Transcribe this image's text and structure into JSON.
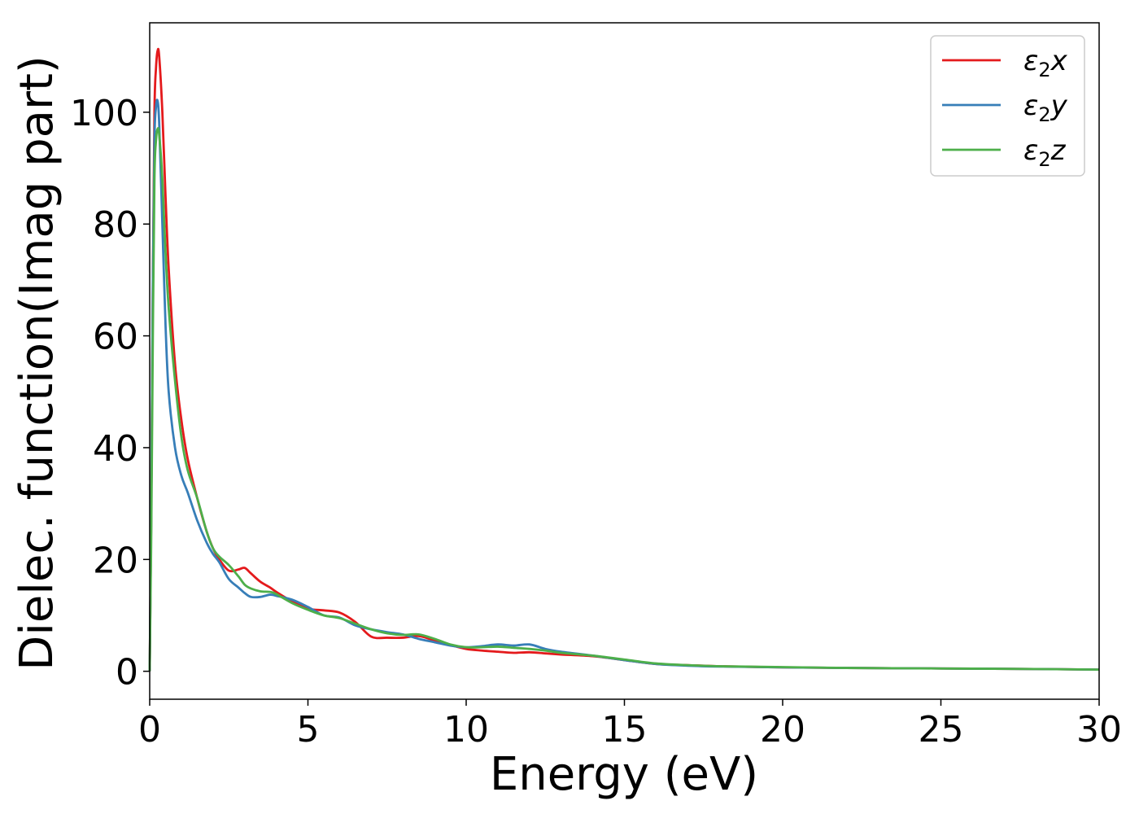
{
  "chart_data": {
    "type": "line",
    "title": "",
    "xlabel": "Energy (eV)",
    "ylabel": "Dielec. function(Imag part)",
    "xlim": [
      0,
      30
    ],
    "ylim": [
      -5,
      116
    ],
    "xticks": [
      0,
      5,
      10,
      15,
      20,
      25,
      30
    ],
    "yticks": [
      0,
      20,
      40,
      60,
      80,
      100
    ],
    "grid": false,
    "legend": "top-right",
    "series": [
      {
        "name": "ε2x",
        "legend_base": "ε",
        "legend_sub": "2",
        "legend_suffix": "x",
        "color": "#e41a1c",
        "x": [
          0,
          0.05,
          0.1,
          0.15,
          0.2,
          0.25,
          0.3,
          0.4,
          0.5,
          0.6,
          0.8,
          1.0,
          1.2,
          1.5,
          1.8,
          2.0,
          2.2,
          2.5,
          2.8,
          3.0,
          3.2,
          3.5,
          3.8,
          4.0,
          4.5,
          5.0,
          5.5,
          6.0,
          6.5,
          7.0,
          7.5,
          8.0,
          8.5,
          9.0,
          9.5,
          10,
          10.5,
          11,
          11.5,
          12,
          12.5,
          13,
          14,
          15,
          16,
          17,
          18,
          20,
          22,
          25,
          28,
          30
        ],
        "y": [
          0,
          30,
          70,
          100,
          108,
          111,
          110,
          100,
          85,
          72,
          55,
          45,
          38,
          31,
          25,
          22,
          20,
          18,
          18.2,
          18.5,
          17.5,
          16,
          15,
          14.2,
          12.5,
          11.2,
          10.9,
          10.5,
          8.8,
          6.2,
          6.0,
          6.0,
          6.3,
          5.5,
          4.7,
          4.0,
          3.7,
          3.5,
          3.3,
          3.4,
          3.2,
          3.0,
          2.7,
          2.0,
          1.3,
          1.1,
          0.9,
          0.7,
          0.6,
          0.5,
          0.4,
          0.3
        ]
      },
      {
        "name": "ε2y",
        "legend_base": "ε",
        "legend_sub": "2",
        "legend_suffix": "y",
        "color": "#377eb8",
        "x": [
          0,
          0.05,
          0.1,
          0.15,
          0.2,
          0.25,
          0.3,
          0.4,
          0.5,
          0.6,
          0.8,
          1.0,
          1.2,
          1.5,
          1.8,
          2.0,
          2.2,
          2.5,
          2.8,
          3.0,
          3.2,
          3.5,
          3.8,
          4.0,
          4.5,
          5.0,
          5.5,
          6.0,
          6.5,
          7.0,
          7.5,
          8.0,
          8.5,
          9.0,
          9.5,
          10,
          10.5,
          11,
          11.5,
          12,
          12.5,
          13,
          14,
          15,
          16,
          17,
          18,
          20,
          22,
          25,
          28,
          30
        ],
        "y": [
          0,
          30,
          70,
          95,
          101,
          102,
          98,
          80,
          62,
          50,
          40,
          35,
          32,
          27,
          23,
          21,
          19.5,
          16.5,
          15,
          14,
          13.3,
          13.3,
          13.7,
          13.5,
          12.8,
          11.5,
          10.0,
          9.6,
          8.2,
          7.5,
          7.0,
          6.6,
          5.8,
          5.2,
          4.6,
          4.3,
          4.5,
          4.8,
          4.6,
          4.8,
          4.0,
          3.5,
          2.8,
          2.0,
          1.3,
          1.0,
          0.85,
          0.7,
          0.6,
          0.5,
          0.4,
          0.3
        ]
      },
      {
        "name": "ε2z",
        "legend_base": "ε",
        "legend_sub": "2",
        "legend_suffix": "z",
        "color": "#4daf4a",
        "x": [
          0,
          0.05,
          0.1,
          0.15,
          0.2,
          0.25,
          0.3,
          0.4,
          0.5,
          0.6,
          0.8,
          1.0,
          1.2,
          1.5,
          1.8,
          2.0,
          2.2,
          2.5,
          2.8,
          3.0,
          3.2,
          3.5,
          3.8,
          4.0,
          4.5,
          5.0,
          5.5,
          6.0,
          6.5,
          7.0,
          7.5,
          8.0,
          8.5,
          9.0,
          9.5,
          10,
          10.5,
          11,
          11.5,
          12,
          12.5,
          13,
          14,
          15,
          16,
          17,
          18,
          20,
          22,
          25,
          28,
          30
        ],
        "y": [
          0,
          25,
          60,
          88,
          95,
          97,
          96,
          88,
          75,
          65,
          52,
          42,
          36,
          31,
          25,
          22,
          20.5,
          19,
          17,
          15.5,
          14.8,
          14.3,
          14.2,
          13.8,
          12.2,
          11.0,
          10.0,
          9.5,
          8.5,
          7.5,
          6.8,
          6.5,
          6.6,
          5.8,
          4.8,
          4.3,
          4.3,
          4.4,
          4.2,
          4.0,
          3.7,
          3.3,
          2.8,
          2.1,
          1.4,
          1.1,
          0.9,
          0.75,
          0.6,
          0.5,
          0.4,
          0.3
        ]
      }
    ]
  }
}
